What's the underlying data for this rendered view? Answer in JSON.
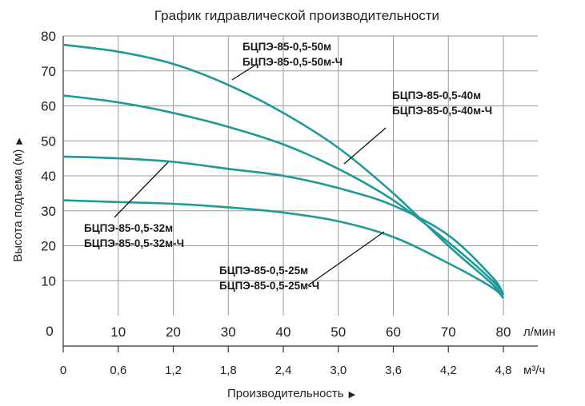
{
  "chart_data": {
    "type": "line",
    "title": "График гидравлической производительности",
    "ylabel": "Высота подъема (м)",
    "xlabel": "Производительность",
    "ylim": [
      0,
      80
    ],
    "y_ticks": [
      "10",
      "20",
      "30",
      "40",
      "50",
      "60",
      "70",
      "80"
    ],
    "y_zero_label": "0",
    "x_ticks_lpm": [
      "10",
      "20",
      "30",
      "40",
      "50",
      "60",
      "70",
      "80"
    ],
    "x_unit_lpm": "л/мин",
    "x_ticks_m3h": [
      "0",
      "0,6",
      "1,2",
      "1,8",
      "2,4",
      "3,0",
      "3,6",
      "4,2",
      "4,8"
    ],
    "x_unit_m3h": "м³/ч",
    "xlim": [
      0,
      80
    ],
    "grid": true,
    "series": [
      {
        "name": "БЦПЭ-85-0,5-50м / БЦПЭ-85-0,5-50м-Ч",
        "label_lines": [
          "БЦПЭ-85-0,5-50м",
          "БЦПЭ-85-0,5-50м-Ч"
        ],
        "x": [
          0,
          10,
          20,
          30,
          40,
          50,
          60,
          70,
          78,
          80
        ],
        "y": [
          77.5,
          75.5,
          72,
          66,
          58,
          48,
          35,
          20,
          9,
          5
        ]
      },
      {
        "name": "БЦПЭ-85-0,5-40м / БЦПЭ-85-0,5-40м-Ч",
        "label_lines": [
          "БЦПЭ-85-0,5-40м",
          "БЦПЭ-85-0,5-40м-Ч"
        ],
        "x": [
          0,
          10,
          20,
          30,
          40,
          50,
          60,
          70,
          78,
          80
        ],
        "y": [
          63,
          61,
          58,
          54,
          49,
          42,
          33,
          21,
          10,
          6
        ]
      },
      {
        "name": "БЦПЭ-85-0,5-32м / БЦПЭ-85-0,5-32м-Ч",
        "label_lines": [
          "БЦПЭ-85-0,5-32м",
          "БЦПЭ-85-0,5-32м-Ч"
        ],
        "x": [
          0,
          10,
          20,
          30,
          40,
          50,
          60,
          70,
          78,
          80
        ],
        "y": [
          45.5,
          45,
          44,
          42,
          40,
          36.5,
          31.5,
          23,
          11,
          6
        ]
      },
      {
        "name": "БЦПЭ-85-0,5-25м / БЦПЭ-85-0,5-25м-Ч",
        "label_lines": [
          "БЦПЭ-85-0,5-25м",
          "БЦПЭ-85-0,5-25м-Ч"
        ],
        "x": [
          0,
          10,
          20,
          30,
          40,
          50,
          60,
          70,
          78,
          80
        ],
        "y": [
          33,
          32.5,
          32,
          31,
          29.5,
          27,
          22.5,
          15,
          8,
          5
        ]
      }
    ],
    "colors": {
      "curve": "#1f9a96",
      "grid": "#9a9a9a",
      "text": "#222222"
    }
  }
}
